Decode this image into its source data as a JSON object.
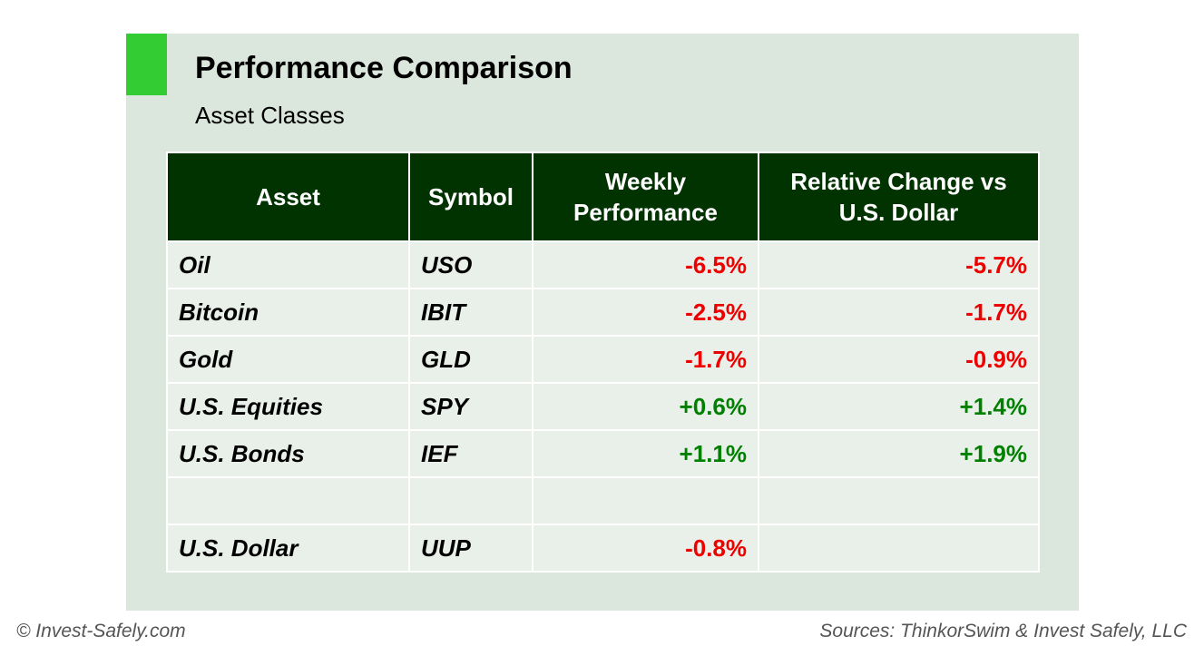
{
  "title": "Performance Comparison",
  "subtitle": "Asset Classes",
  "colors": {
    "accent": "#33cc33",
    "header_bg": "#003300",
    "negative": "#ee0000",
    "positive": "#008000",
    "panel_bg": "#dbe7dc",
    "row_bg": "#e9f0e9"
  },
  "table": {
    "headers": {
      "asset": "Asset",
      "symbol": "Symbol",
      "weekly_line1": "Weekly",
      "weekly_line2": "Performance",
      "relative_line1": "Relative Change vs",
      "relative_line2": "U.S. Dollar"
    },
    "rows": [
      {
        "asset": "Oil",
        "symbol": "USO",
        "weekly": "-6.5%",
        "relative": "-5.7%"
      },
      {
        "asset": "Bitcoin",
        "symbol": "IBIT",
        "weekly": "-2.5%",
        "relative": "-1.7%"
      },
      {
        "asset": "Gold",
        "symbol": "GLD",
        "weekly": "-1.7%",
        "relative": "-0.9%"
      },
      {
        "asset": "U.S. Equities",
        "symbol": "SPY",
        "weekly": "+0.6%",
        "relative": "+1.4%"
      },
      {
        "asset": "U.S. Bonds",
        "symbol": "IEF",
        "weekly": "+1.1%",
        "relative": "+1.9%"
      }
    ],
    "benchmark": {
      "asset": "U.S. Dollar",
      "symbol": "UUP",
      "weekly": "-0.8%",
      "relative": ""
    }
  },
  "chart_data": {
    "type": "table",
    "title": "Performance Comparison",
    "subtitle": "Asset Classes",
    "columns": [
      "Asset",
      "Symbol",
      "Weekly Performance",
      "Relative Change vs U.S. Dollar"
    ],
    "rows": [
      [
        "Oil",
        "USO",
        -6.5,
        -5.7
      ],
      [
        "Bitcoin",
        "IBIT",
        -2.5,
        -1.7
      ],
      [
        "Gold",
        "GLD",
        -1.7,
        -0.9
      ],
      [
        "U.S. Equities",
        "SPY",
        0.6,
        1.4
      ],
      [
        "U.S. Bonds",
        "IEF",
        1.1,
        1.9
      ],
      [
        "U.S. Dollar",
        "UUP",
        -0.8,
        null
      ]
    ]
  },
  "footer": {
    "copyright": "© Invest-Safely.com",
    "sources": "Sources: ThinkorSwim & Invest Safely, LLC"
  }
}
